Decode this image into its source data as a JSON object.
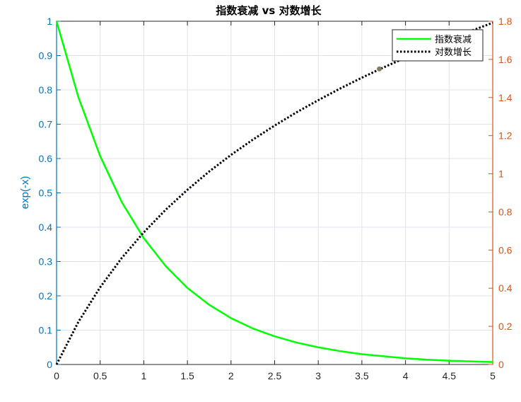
{
  "chart_data": {
    "type": "line",
    "title": "指数衰减 vs 对数增长",
    "xlabel": "",
    "ylabel_left": "exp(-x)",
    "ylabel_right": "",
    "xlim": [
      0,
      5
    ],
    "ylim_left": [
      0,
      1
    ],
    "ylim_right": [
      0,
      1.8
    ],
    "x_ticks": [
      "0",
      "0.5",
      "1",
      "1.5",
      "2",
      "2.5",
      "3",
      "3.5",
      "4",
      "4.5",
      "5"
    ],
    "y_ticks_left": [
      "0",
      "0.1",
      "0.2",
      "0.3",
      "0.4",
      "0.5",
      "0.6",
      "0.7",
      "0.8",
      "0.9",
      "1"
    ],
    "y_ticks_right": [
      "0",
      "0.2",
      "0.4",
      "0.6",
      "0.8",
      "1",
      "1.2",
      "1.4",
      "1.6",
      "1.8"
    ],
    "grid": true,
    "legend_position": "top-right",
    "x": [
      0,
      0.25,
      0.5,
      0.75,
      1,
      1.25,
      1.5,
      1.75,
      2,
      2.25,
      2.5,
      2.75,
      3,
      3.25,
      3.5,
      3.75,
      4,
      4.25,
      4.5,
      4.75,
      5
    ],
    "series": [
      {
        "name": "指数衰减",
        "axis": "left",
        "color": "#00FF00",
        "style": "solid",
        "values": [
          1,
          0.779,
          0.607,
          0.472,
          0.368,
          0.287,
          0.223,
          0.174,
          0.135,
          0.105,
          0.082,
          0.064,
          0.05,
          0.039,
          0.03,
          0.024,
          0.018,
          0.014,
          0.011,
          0.009,
          0.007
        ]
      },
      {
        "name": "对数增长",
        "axis": "right",
        "color": "#000000",
        "style": "dotted",
        "values": [
          0,
          0.223,
          0.405,
          0.56,
          0.693,
          0.811,
          0.916,
          1.012,
          1.099,
          1.179,
          1.253,
          1.322,
          1.386,
          1.447,
          1.504,
          1.558,
          1.609,
          1.658,
          1.705,
          1.749,
          1.792
        ]
      }
    ],
    "marker_point": {
      "x": 3.7,
      "y": 1.55,
      "axis": "right",
      "color": "#7f7f5f"
    },
    "colors": {
      "left_axis": "#0072BD",
      "right_axis": "#D95319",
      "grid": "#dfe3ea"
    }
  }
}
